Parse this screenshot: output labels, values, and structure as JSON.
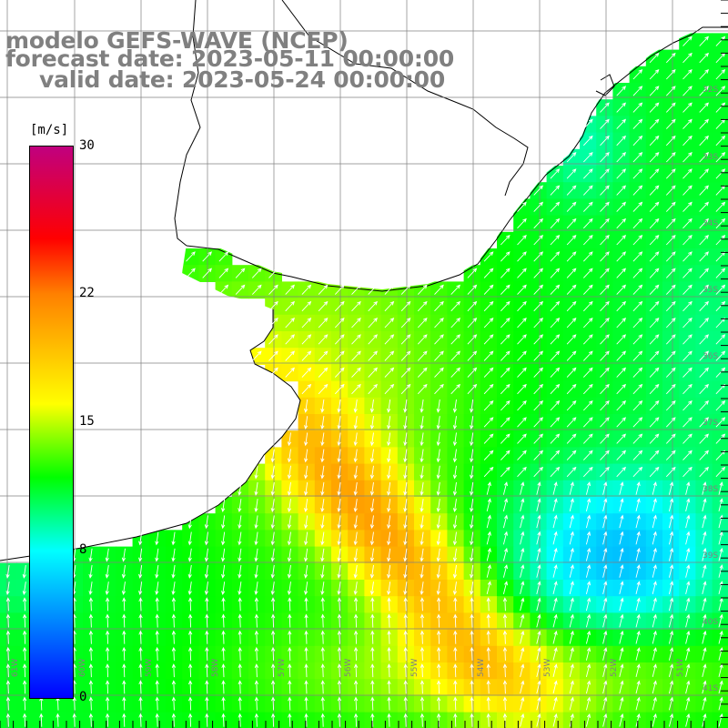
{
  "header": {
    "model": "modelo GEFS-WAVE (NCEP)",
    "forecast": "forecast date: 2023-05-11 00:00:00",
    "valid": "valid date: 2023-05-24 00:00:00"
  },
  "colorbar": {
    "unit": "[m/s]",
    "labels": [
      "30",
      "22",
      "15",
      "8",
      "0"
    ],
    "label_values": [
      30,
      22,
      15,
      8,
      0
    ],
    "range": [
      0,
      30
    ],
    "stops": [
      {
        "v": 0,
        "c": "#0000ff"
      },
      {
        "v": 8,
        "c": "#00ffff"
      },
      {
        "v": 12,
        "c": "#00ff00"
      },
      {
        "v": 16,
        "c": "#ffff00"
      },
      {
        "v": 22,
        "c": "#ff8000"
      },
      {
        "v": 25,
        "c": "#ff0000"
      },
      {
        "v": 30,
        "c": "#c0007f"
      }
    ]
  },
  "lat_labels": [
    "32S",
    "33S",
    "34S",
    "35S",
    "36S",
    "37S",
    "38S",
    "39S",
    "40S",
    "41S"
  ],
  "lon_labels": [
    "61W",
    "60W",
    "59W",
    "58W",
    "57W",
    "56W",
    "55W",
    "54W",
    "53W",
    "52W",
    "51W"
  ],
  "colors": {
    "land": "#ffffff",
    "coast": "#000000",
    "grid": "#7f7f7f",
    "arrow": "#ffffff",
    "header_text": "#808080"
  }
}
